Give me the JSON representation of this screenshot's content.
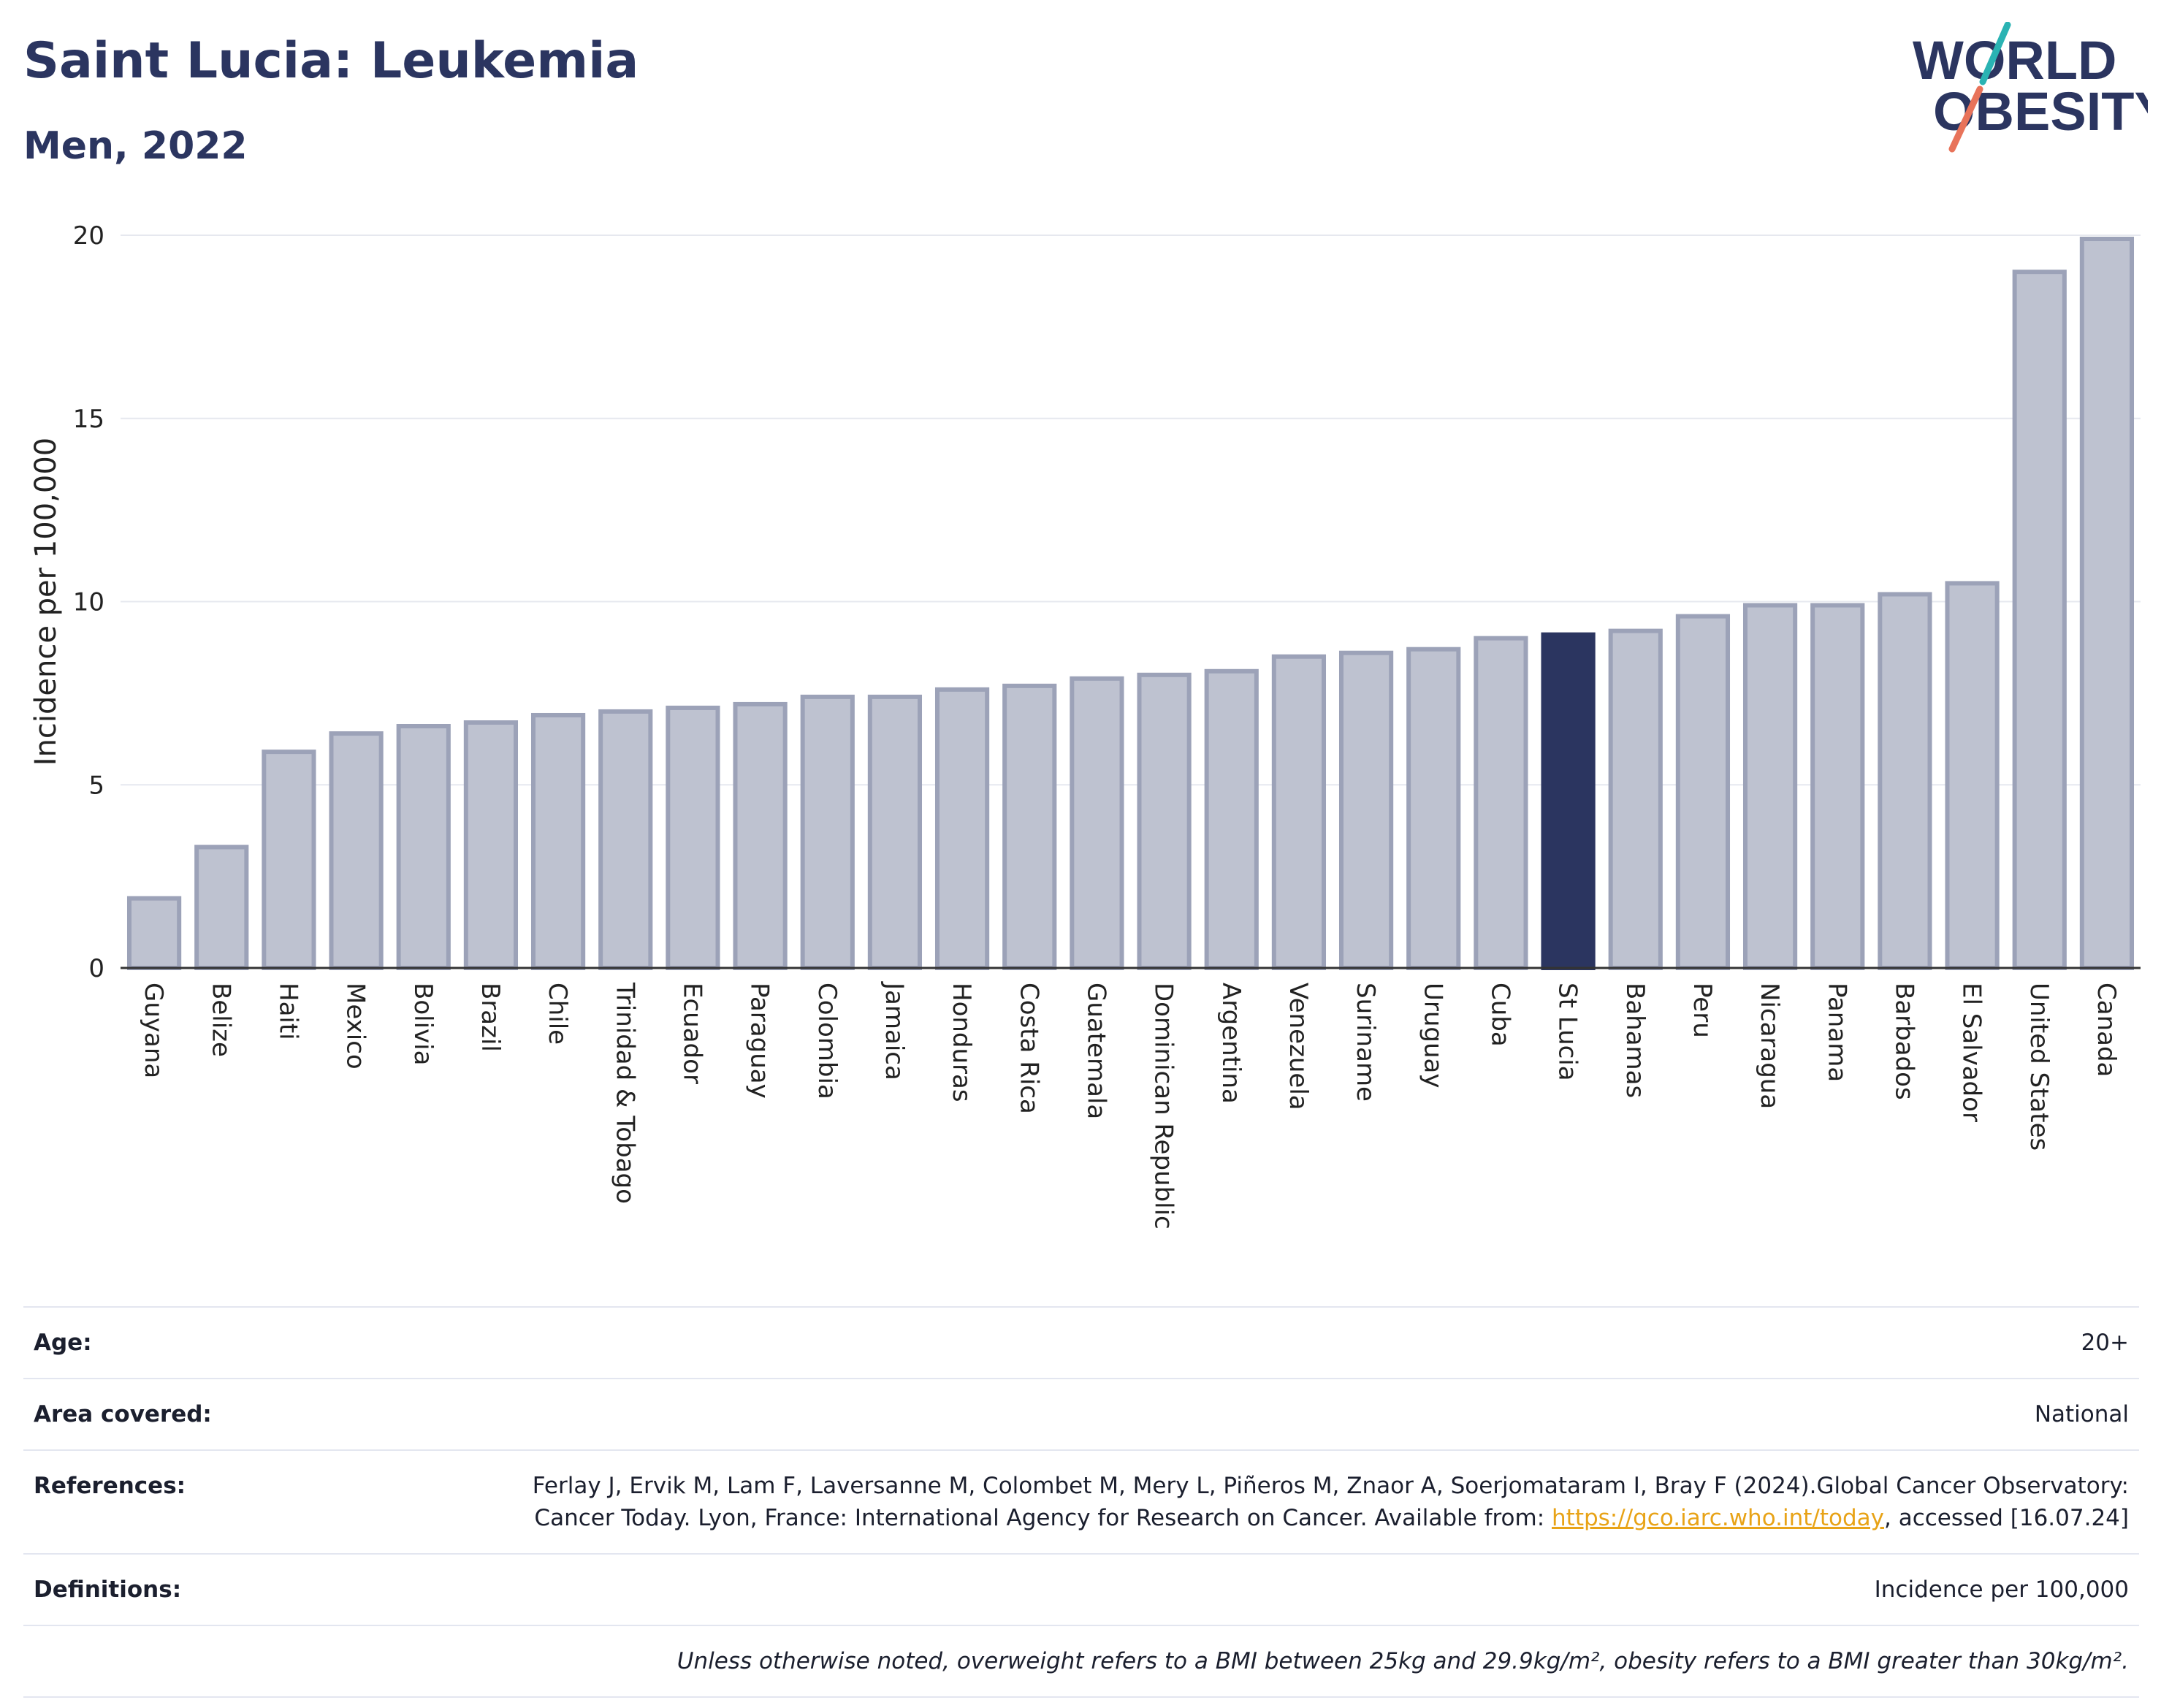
{
  "header": {
    "title": "Saint Lucia: Leukemia",
    "subtitle": "Men, 2022"
  },
  "logo": {
    "line1": "WORLD",
    "line2": "OBESITY",
    "colors": {
      "text": "#2b3560",
      "slash_teal": "#2ab3b3",
      "slash_coral": "#e8735a"
    }
  },
  "colors": {
    "bar_default": "#bec2d0",
    "bar_default_stroke": "#9ca2b8",
    "bar_highlight": "#2b3560",
    "grid": "#e6e8ef",
    "axis": "#333333"
  },
  "chart_data": {
    "type": "bar",
    "ylabel": "Incidence per 100,000",
    "ylim": [
      0,
      20
    ],
    "yticks": [
      0,
      5,
      10,
      15,
      20
    ],
    "grid": true,
    "highlight": "St Lucia",
    "categories": [
      "Guyana",
      "Belize",
      "Haiti",
      "Mexico",
      "Bolivia",
      "Brazil",
      "Chile",
      "Trinidad & Tobago",
      "Ecuador",
      "Paraguay",
      "Colombia",
      "Jamaica",
      "Honduras",
      "Costa Rica",
      "Guatemala",
      "Dominican Republic",
      "Argentina",
      "Venezuela",
      "Suriname",
      "Uruguay",
      "Cuba",
      "St Lucia",
      "Bahamas",
      "Peru",
      "Nicaragua",
      "Panama",
      "Barbados",
      "El Salvador",
      "United States",
      "Canada"
    ],
    "values": [
      1.9,
      3.3,
      5.9,
      6.4,
      6.6,
      6.7,
      6.9,
      7.0,
      7.1,
      7.2,
      7.4,
      7.4,
      7.6,
      7.7,
      7.9,
      8.0,
      8.1,
      8.5,
      8.6,
      8.7,
      9.0,
      9.1,
      9.2,
      9.6,
      9.9,
      9.9,
      10.2,
      10.5,
      19.0,
      19.9
    ]
  },
  "info": {
    "age_label": "Age:",
    "age_value": "20+",
    "area_label": "Area covered:",
    "area_value": "National",
    "references_label": "References:",
    "references_text": "Ferlay J, Ervik M, Lam F, Laversanne M, Colombet M, Mery L, Piñeros M, Znaor A, Soerjomataram I, Bray F (2024).Global Cancer Observatory: Cancer Today. Lyon, France: International Agency for Research on Cancer. Available from: ",
    "references_link": "https://gco.iarc.who.int/today",
    "references_suffix": ", accessed [16.07.24]",
    "definitions_label": "Definitions:",
    "definitions_value": "Incidence per 100,000",
    "note": "Unless otherwise noted, overweight refers to a BMI between 25kg and 29.9kg/m², obesity refers to a BMI greater than 30kg/m²."
  }
}
